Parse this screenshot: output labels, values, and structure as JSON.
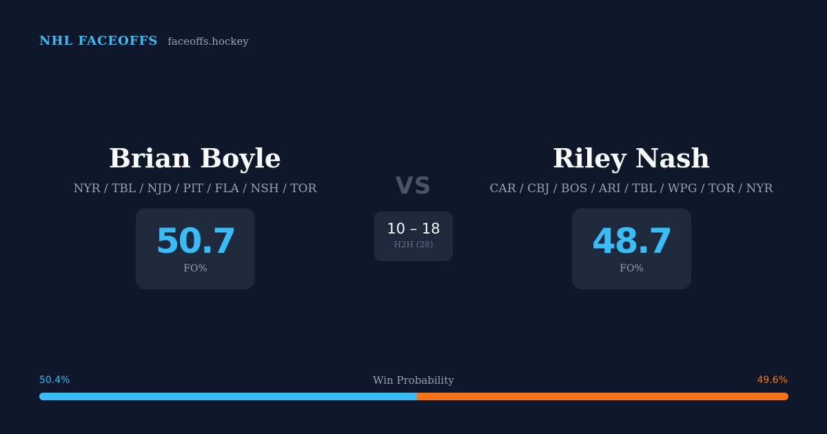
{
  "brand": {
    "name": "NHL FACEOFFS",
    "url": "faceoffs.hockey"
  },
  "players": [
    {
      "name": "Brian Boyle",
      "teams": "NYR / TBL / NJD / PIT / FLA / NSH / TOR",
      "fo_pct": "50.7",
      "fo_label": "FO%"
    },
    {
      "name": "Riley Nash",
      "teams": "CAR / CBJ / BOS / ARI / TBL / WPG / TOR / NYR",
      "fo_pct": "48.7",
      "fo_label": "FO%"
    }
  ],
  "vs_label": "VS",
  "h2h": {
    "score": "10 – 18",
    "label": "H2H (28)"
  },
  "win_probability": {
    "title": "Win Probability",
    "left_label": "50.4%",
    "right_label": "49.6%",
    "left_value": 50.4,
    "right_value": 49.6
  },
  "colors": {
    "background": "#0f172a",
    "card": "#1e293b",
    "accent_left": "#38bdf8",
    "accent_right": "#f97316"
  }
}
